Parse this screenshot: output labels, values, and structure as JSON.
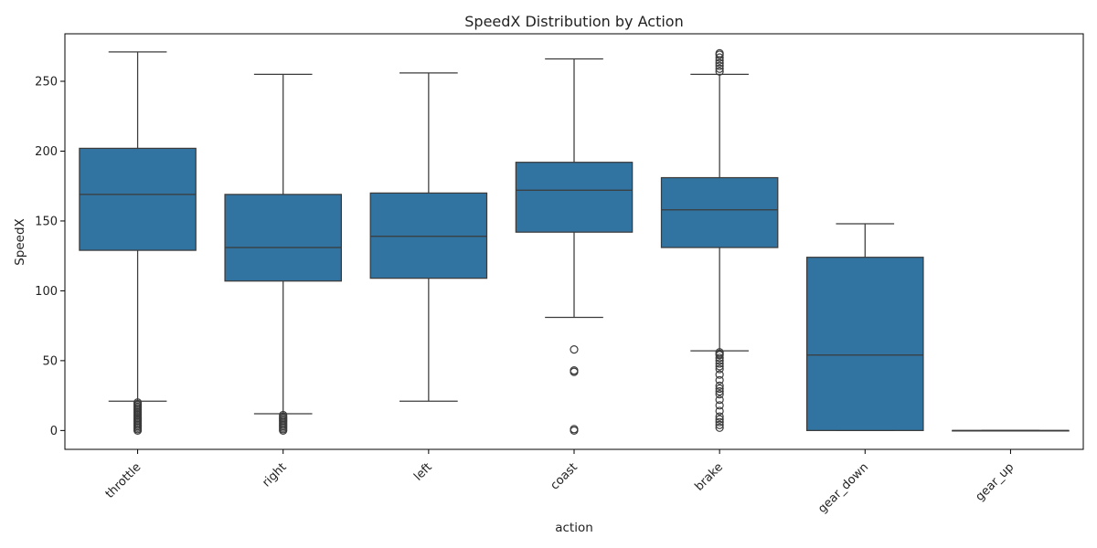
{
  "chart_data": {
    "type": "box",
    "title": "SpeedX Distribution by Action",
    "xlabel": "action",
    "ylabel": "SpeedX",
    "ylim": [
      -13.5,
      284
    ],
    "yticks": [
      0,
      50,
      100,
      150,
      200,
      250
    ],
    "grid": false,
    "legend": "none",
    "colors": {
      "box_fill": "#3274a1",
      "line": "#3b3b3b",
      "axis": "#000000"
    },
    "categories": [
      "throttle",
      "right",
      "left",
      "coast",
      "brake",
      "gear_down",
      "gear_up"
    ],
    "series": [
      {
        "category": "throttle",
        "whisker_low": 21,
        "q1": 129,
        "median": 169,
        "q3": 202,
        "whisker_high": 271,
        "outliers": [
          0,
          1,
          2,
          3,
          4,
          5,
          6,
          7,
          8,
          9,
          10,
          11,
          12,
          13,
          14,
          15,
          16,
          17,
          18,
          19,
          20
        ]
      },
      {
        "category": "right",
        "whisker_low": 12,
        "q1": 107,
        "median": 131,
        "q3": 169,
        "whisker_high": 255,
        "outliers": [
          0,
          1,
          2,
          3,
          4,
          5,
          6,
          7,
          8,
          9,
          10,
          11
        ]
      },
      {
        "category": "left",
        "whisker_low": 21,
        "q1": 109,
        "median": 139,
        "q3": 170,
        "whisker_high": 256,
        "outliers": []
      },
      {
        "category": "coast",
        "whisker_low": 81,
        "q1": 142,
        "median": 172,
        "q3": 192,
        "whisker_high": 266,
        "outliers": [
          0,
          1,
          42,
          43,
          58
        ]
      },
      {
        "category": "brake",
        "whisker_low": 57,
        "q1": 131,
        "median": 158,
        "q3": 181,
        "whisker_high": 255,
        "outliers": [
          2,
          4,
          6,
          8,
          10,
          14,
          18,
          22,
          26,
          28,
          30,
          32,
          36,
          40,
          44,
          46,
          48,
          50,
          52,
          54,
          55,
          56,
          257,
          259,
          261,
          263,
          265,
          267,
          269,
          270
        ]
      },
      {
        "category": "gear_down",
        "whisker_low": 0,
        "q1": 0,
        "median": 54,
        "q3": 124,
        "whisker_high": 148,
        "outliers": []
      },
      {
        "category": "gear_up",
        "whisker_low": 0,
        "q1": 0,
        "median": 0,
        "q3": 0,
        "whisker_high": 0,
        "outliers": []
      }
    ]
  }
}
